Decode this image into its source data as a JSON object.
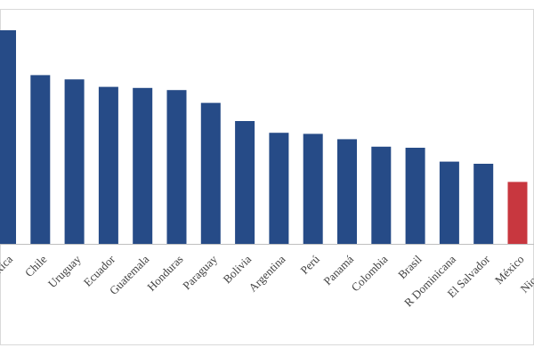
{
  "chart_data": {
    "type": "bar",
    "title": "",
    "xlabel": "",
    "ylabel": "",
    "grid": false,
    "legend": "none",
    "categories": [
      "Costa Rica",
      "Chile",
      "Uruguay",
      "Ecuador",
      "Guatemala",
      "Honduras",
      "Paraguay",
      "Bolivia",
      "Argentina",
      "Perú",
      "Panamá",
      "Colombia",
      "Brasil",
      "R Dominicana",
      "El Salvador",
      "México",
      "Nicaragua"
    ],
    "values": [
      100,
      79,
      77,
      73.5,
      73,
      72,
      66,
      57.5,
      52,
      51.5,
      49,
      45.5,
      45,
      38.5,
      37.5,
      29,
      0
    ],
    "ylim": [
      0,
      100
    ],
    "colors": {
      "default": "#264b87",
      "highlight": "#c8373f",
      "highlight_category": "México",
      "axis": "#bfbfbf",
      "frame": "#d9d9d9"
    }
  }
}
